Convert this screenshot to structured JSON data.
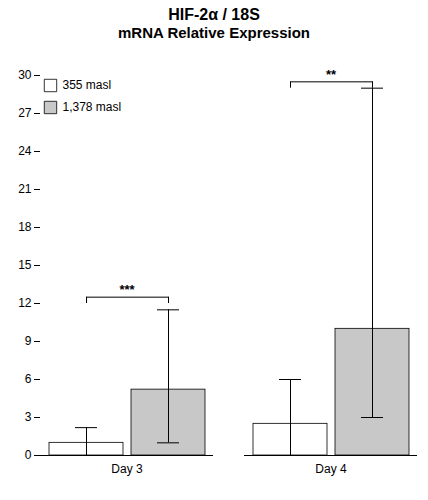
{
  "chart_data": {
    "type": "bar",
    "title": "HIF-2α / 18S",
    "subtitle": "mRNA Relative Expression",
    "categories": [
      "Day 3",
      "Day 4"
    ],
    "series": [
      {
        "name": "355 masl",
        "color": "#ffffff",
        "values": [
          1.0,
          2.5
        ],
        "ci_low": [
          0.0,
          0.0
        ],
        "ci_high": [
          2.2,
          6.0
        ]
      },
      {
        "name": "1,378 masl",
        "color": "#c8c8c8",
        "values": [
          5.2,
          10.0
        ],
        "ci_low": [
          1.0,
          3.0
        ],
        "ci_high": [
          11.5,
          29.0
        ]
      }
    ],
    "annotations": [
      {
        "category": "Day 3",
        "label": "***",
        "y": 12.5,
        "bracket_drop": 0.5
      },
      {
        "category": "Day 4",
        "label": "**",
        "y": 29.5,
        "bracket_drop": 0.5
      }
    ],
    "ylim": [
      0,
      30
    ],
    "yticks": [
      0,
      3,
      6,
      9,
      12,
      15,
      18,
      21,
      24,
      27,
      30
    ],
    "grid": false,
    "legend": "upper left"
  }
}
